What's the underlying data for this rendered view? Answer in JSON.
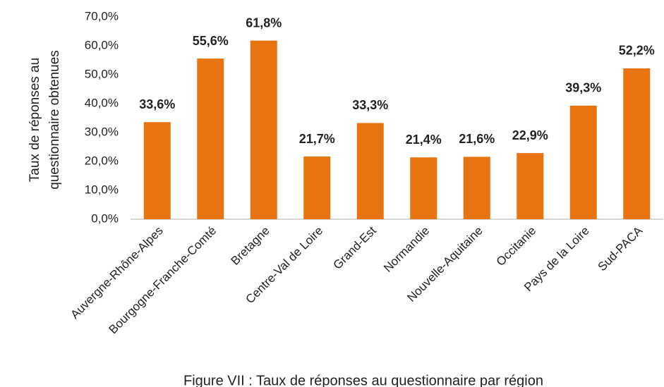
{
  "chart_data": {
    "type": "bar",
    "caption": "Figure VII : Taux de réponses au questionnaire par région",
    "ylabel": [
      "Taux de réponses au",
      "questionnaire obtenues"
    ],
    "categories": [
      "Auvergne-Rhône-Alpes",
      "Bourgogne-Franche-Comté",
      "Bretagne",
      "Centre-Val de Loire",
      "Grand-Est",
      "Normandie",
      "Nouvelle-Aquitaine",
      "Occitanie",
      "Pays de la Loire",
      "Sud-PACA"
    ],
    "values": [
      33.6,
      55.6,
      61.8,
      21.7,
      33.3,
      21.4,
      21.6,
      22.9,
      39.3,
      52.2
    ],
    "value_labels": [
      "33,6%",
      "55,6%",
      "61,8%",
      "21,7%",
      "33,3%",
      "21,4%",
      "21,6%",
      "22,9%",
      "39,3%",
      "52,2%"
    ],
    "color": "#e8740f",
    "ylim": [
      0,
      70
    ],
    "yticks": [
      {
        "value": 0,
        "label": "0,0%"
      },
      {
        "value": 10,
        "label": "10,0%"
      },
      {
        "value": 20,
        "label": "20,0%"
      },
      {
        "value": 30,
        "label": "30,0%"
      },
      {
        "value": 40,
        "label": "40,0%"
      },
      {
        "value": 50,
        "label": "50,0%"
      },
      {
        "value": 60,
        "label": "60,0%"
      },
      {
        "value": 70,
        "label": "70,0%"
      }
    ],
    "grid": false
  }
}
